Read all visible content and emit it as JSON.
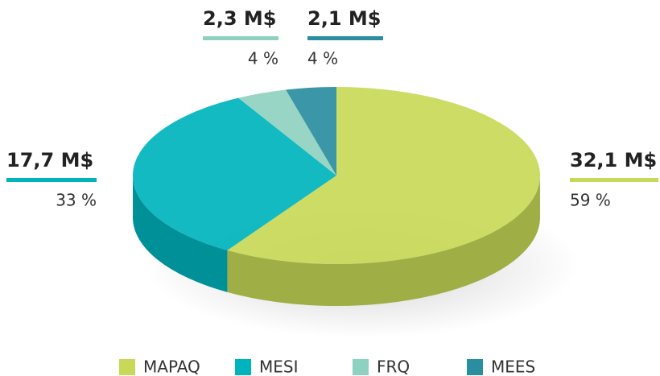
{
  "chart_data": {
    "type": "pie",
    "categories": [
      "MAPAQ",
      "MESI",
      "FRQ",
      "MEES"
    ],
    "values": [
      59,
      33,
      4,
      4
    ],
    "value_labels": [
      "59 %",
      "33 %",
      "4 %",
      "4 %"
    ],
    "amounts": [
      32.1,
      17.7,
      2.3,
      2.1
    ],
    "amount_labels": [
      "32,1 M$",
      "17,7 M$",
      "2,3 M$",
      "2,1 M$"
    ],
    "colors": [
      "#c8d957",
      "#00b4bd",
      "#8fd1c0",
      "#2a8ea1"
    ],
    "legend": "bottom"
  }
}
